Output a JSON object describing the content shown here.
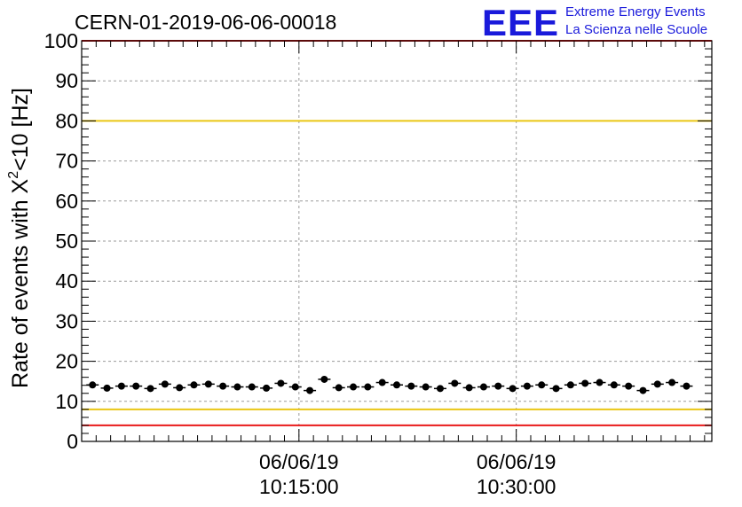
{
  "chart_data": {
    "type": "scatter",
    "title": "CERN-01-2019-06-06-00018",
    "ylabel_main": "Rate of events with X",
    "ylabel_sup": "2",
    "ylabel_tail": "<10 [Hz]",
    "xlabel": "",
    "ylim": [
      0,
      100
    ],
    "y_ticks": [
      "0",
      "10",
      "20",
      "30",
      "40",
      "50",
      "60",
      "70",
      "80",
      "90",
      "100"
    ],
    "x_ticks": [
      {
        "date": "06/06/19",
        "time": "10:15:00"
      },
      {
        "date": "06/06/19",
        "time": "10:30:00"
      }
    ],
    "grid": true,
    "reference_lines": [
      {
        "y": 100,
        "color": "#e8191a"
      },
      {
        "y": 80,
        "color": "#eac614"
      },
      {
        "y": 8,
        "color": "#eac614"
      },
      {
        "y": 4,
        "color": "#e8191a"
      }
    ],
    "series": [
      {
        "color": "#000000",
        "x": [
          "10:00:45",
          "10:01:45",
          "10:02:45",
          "10:03:45",
          "10:04:45",
          "10:05:45",
          "10:06:45",
          "10:07:45",
          "10:08:45",
          "10:09:45",
          "10:10:45",
          "10:11:45",
          "10:12:45",
          "10:13:45",
          "10:14:45",
          "10:15:45",
          "10:16:45",
          "10:17:45",
          "10:18:45",
          "10:19:45",
          "10:20:45",
          "10:21:45",
          "10:22:45",
          "10:23:45",
          "10:24:45",
          "10:25:45",
          "10:26:45",
          "10:27:45",
          "10:28:45",
          "10:29:45",
          "10:30:45",
          "10:31:45",
          "10:32:45",
          "10:33:45",
          "10:34:45",
          "10:35:45",
          "10:36:45",
          "10:37:45",
          "10:38:45",
          "10:39:45",
          "10:40:45",
          "10:41:45"
        ],
        "values": [
          14.1,
          13.3,
          13.8,
          13.8,
          13.2,
          14.3,
          13.4,
          14.1,
          14.3,
          13.8,
          13.6,
          13.6,
          13.3,
          14.5,
          13.6,
          12.7,
          15.5,
          13.4,
          13.6,
          13.6,
          14.7,
          14.1,
          13.8,
          13.6,
          13.2,
          14.5,
          13.4,
          13.6,
          13.8,
          13.2,
          13.8,
          14.1,
          13.2,
          14.1,
          14.5,
          14.7,
          14.1,
          13.8,
          12.7,
          14.3,
          14.7,
          13.8
        ]
      }
    ]
  },
  "logo": {
    "text": "EEE",
    "line1": "Extreme Energy Events",
    "line2": "La Scienza nelle Scuole",
    "color": "#1a1adb"
  }
}
